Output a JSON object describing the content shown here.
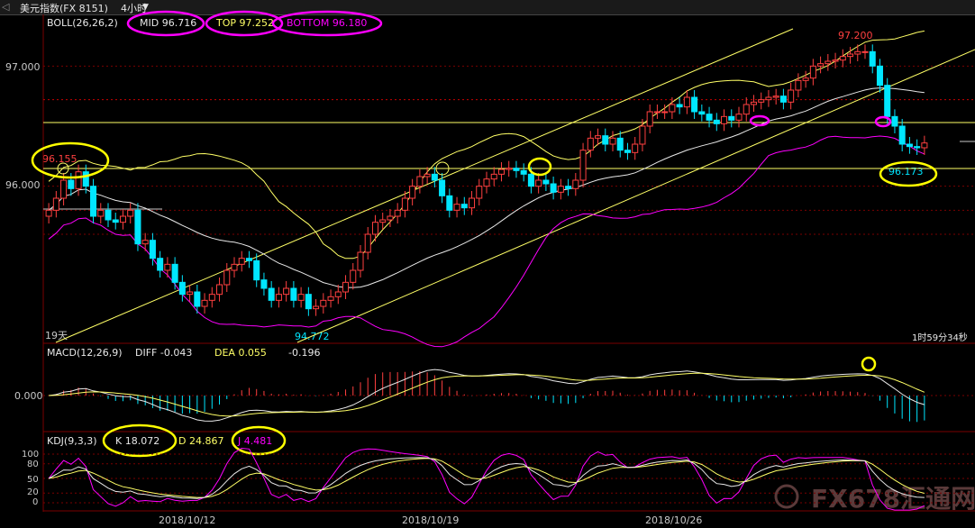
{
  "window": {
    "title": "美元指数(FX 8151)",
    "period": "4小时",
    "chevron": "chevron-down-icon"
  },
  "main": {
    "indicator_label": "BOLL(26,26,2)",
    "mid": "MID 96.716",
    "top": "TOP 97.252",
    "bottom": "BOTTOM 96.180",
    "y_ticks": [
      "97.000",
      "96.000"
    ],
    "annotations": {
      "high": "97.200",
      "left_high": "96.155",
      "low": "94.772",
      "recent_low": "96.173",
      "bars_label": "19天",
      "countdown": "1时59分34秒"
    }
  },
  "macd": {
    "label": "MACD(12,26,9)",
    "diff": "DIFF -0.043",
    "dea": "DEA 0.055",
    "macd": "-0.196",
    "y_tick": "0.000"
  },
  "kdj": {
    "label": "KDJ(9,3,3)",
    "k": "K 18.072",
    "d": "D 24.867",
    "j": "J 4.481",
    "y_ticks": [
      "100",
      "80",
      "50",
      "20",
      "0"
    ]
  },
  "x_axis": {
    "dates": [
      "2018/10/12",
      "2018/10/19",
      "2018/10/26"
    ]
  },
  "watermark": "FX678汇通网",
  "colors": {
    "up": "#ff4040",
    "down": "#00e6ff",
    "mid": "#e8e8e8",
    "bands": "#ffff66",
    "lower": "#ff00ff",
    "grid": "#7a0000"
  },
  "chart_data": {
    "type": "candlestick",
    "title": "美元指数(FX 8151) 4小时",
    "ylim": [
      94.7,
      97.4
    ],
    "closes": [
      95.8,
      95.9,
      96.05,
      95.98,
      96.12,
      96.0,
      95.75,
      95.8,
      95.72,
      95.7,
      95.75,
      95.8,
      95.52,
      95.55,
      95.4,
      95.3,
      95.35,
      95.2,
      95.1,
      95.12,
      95.0,
      95.05,
      95.1,
      95.18,
      95.3,
      95.35,
      95.4,
      95.38,
      95.22,
      95.15,
      95.05,
      95.1,
      95.15,
      95.05,
      95.1,
      94.98,
      95.0,
      95.05,
      95.08,
      95.12,
      95.2,
      95.3,
      95.45,
      95.6,
      95.7,
      95.72,
      95.75,
      95.8,
      95.9,
      96.0,
      96.08,
      96.1,
      96.05,
      95.92,
      95.8,
      95.85,
      95.82,
      95.9,
      96.0,
      96.06,
      96.1,
      96.14,
      96.15,
      96.13,
      96.1,
      96.0,
      96.05,
      96.02,
      95.95,
      96.0,
      95.98,
      96.05,
      96.3,
      96.4,
      96.42,
      96.35,
      96.4,
      96.3,
      96.28,
      96.35,
      96.5,
      96.62,
      96.62,
      96.62,
      96.68,
      96.66,
      96.74,
      96.62,
      96.6,
      96.55,
      96.52,
      96.58,
      96.55,
      96.6,
      96.68,
      96.7,
      96.72,
      96.74,
      96.75,
      96.7,
      96.8,
      96.88,
      96.9,
      97.0,
      97.02,
      97.04,
      97.05,
      97.08,
      97.1,
      97.12,
      97.12,
      97.0,
      96.84,
      96.58,
      96.5,
      96.35,
      96.33,
      96.32,
      96.36
    ]
  }
}
